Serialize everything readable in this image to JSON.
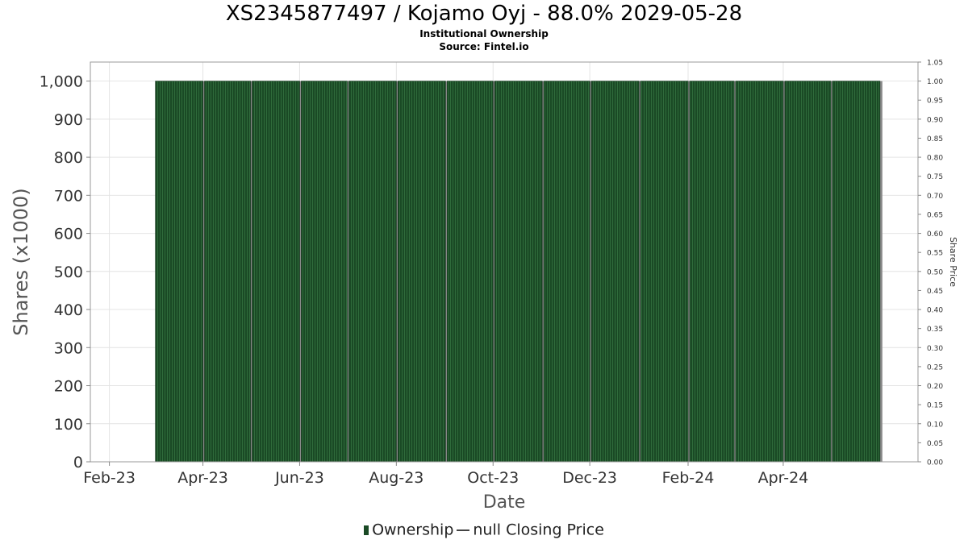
{
  "chart_data": {
    "type": "bar",
    "title": "XS2345877497 / Kojamo Oyj - 88.0% 2029-05-28",
    "subtitle": "Institutional Ownership",
    "source": "Source: Fintel.io",
    "xlabel": "Date",
    "ylabel": "Shares (x1000)",
    "y2label": "Share Price",
    "x_ticks": [
      "Feb-23",
      "Apr-23",
      "Jun-23",
      "Aug-23",
      "Oct-23",
      "Dec-23",
      "Feb-24",
      "Apr-24"
    ],
    "y_ticks": [
      "0",
      "100",
      "200",
      "300",
      "400",
      "500",
      "600",
      "700",
      "800",
      "900",
      "1,000"
    ],
    "y2_ticks": [
      "0.00",
      "0.05",
      "0.10",
      "0.15",
      "0.20",
      "0.25",
      "0.30",
      "0.35",
      "0.40",
      "0.45",
      "0.50",
      "0.55",
      "0.60",
      "0.65",
      "0.70",
      "0.75",
      "0.80",
      "0.85",
      "0.90",
      "0.95",
      "1.00",
      "1.05"
    ],
    "ylim": [
      0,
      1050
    ],
    "y2lim": [
      0,
      1.05
    ],
    "grid": true,
    "legend_position": "bottom",
    "series": [
      {
        "name": "Ownership",
        "color": "#1a4a25",
        "values": [
          1000,
          1000,
          1000,
          1000,
          1000,
          1000,
          1000,
          1000,
          1000,
          1000,
          1000,
          1000,
          1000,
          1000,
          1000
        ]
      },
      {
        "name": "null Closing Price",
        "color": "#444444",
        "values": []
      }
    ],
    "bar_periods": [
      {
        "start": "2023-03-01",
        "end": "2023-03-31"
      },
      {
        "start": "2023-04-01",
        "end": "2023-04-30"
      },
      {
        "start": "2023-05-01",
        "end": "2023-05-31"
      },
      {
        "start": "2023-06-01",
        "end": "2023-06-30"
      },
      {
        "start": "2023-07-01",
        "end": "2023-07-31"
      },
      {
        "start": "2023-08-01",
        "end": "2023-08-31"
      },
      {
        "start": "2023-09-01",
        "end": "2023-09-30"
      },
      {
        "start": "2023-10-01",
        "end": "2023-10-31"
      },
      {
        "start": "2023-11-01",
        "end": "2023-11-30"
      },
      {
        "start": "2023-12-01",
        "end": "2023-12-31"
      },
      {
        "start": "2024-01-01",
        "end": "2024-01-31"
      },
      {
        "start": "2024-02-01",
        "end": "2024-02-29"
      },
      {
        "start": "2024-03-01",
        "end": "2024-03-31"
      },
      {
        "start": "2024-04-01",
        "end": "2024-04-30"
      },
      {
        "start": "2024-05-01",
        "end": "2024-05-31"
      }
    ]
  }
}
